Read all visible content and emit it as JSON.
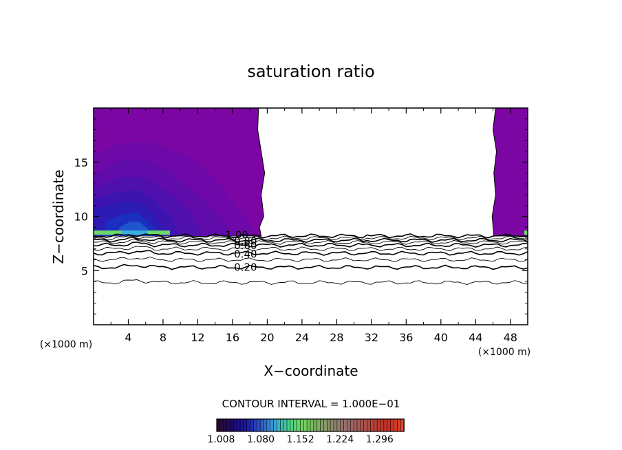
{
  "chart_data": {
    "type": "heatmap",
    "title": "saturation ratio",
    "xlabel": "X−coordinate",
    "ylabel": "Z−coordinate",
    "x_unit": "(×1000 m)",
    "z_unit": "(×1000 m)",
    "xlim": [
      0,
      50
    ],
    "ylim": [
      0,
      20
    ],
    "x_ticks": [
      4,
      8,
      12,
      16,
      20,
      24,
      28,
      32,
      36,
      40,
      44,
      48
    ],
    "y_ticks": [
      5,
      10,
      15
    ],
    "contour_interval_text": "CONTOUR INTERVAL = 1.000E−01",
    "contour_levels": [
      0.1,
      0.2,
      0.3,
      0.4,
      0.5,
      0.6,
      0.7,
      0.8,
      0.9,
      1.0
    ],
    "contour_labels": [
      {
        "text": "0.20",
        "x": 17.5,
        "y": 5.3
      },
      {
        "text": "0.40",
        "x": 17.5,
        "y": 6.5
      },
      {
        "text": "0.60",
        "x": 17.5,
        "y": 7.3
      },
      {
        "text": "0.80",
        "x": 17.5,
        "y": 7.7
      },
      {
        "text": "1.00",
        "x": 16.5,
        "y": 8.3
      }
    ],
    "supersaturated_regions": [
      {
        "x_range": [
          0,
          19
        ],
        "z_range": [
          8.1,
          20
        ]
      },
      {
        "x_range": [
          46,
          50
        ],
        "z_range": [
          8.1,
          20
        ]
      }
    ],
    "colorbar": {
      "min": 1.0,
      "max": 1.34,
      "ticks": [
        "1.008",
        "1.080",
        "1.152",
        "1.224",
        "1.296"
      ],
      "colors": [
        "#2b0a33",
        "#1f0a6e",
        "#1a1aa8",
        "#2f59c9",
        "#3aa7d8",
        "#48d28a",
        "#73d65a",
        "#7cae61",
        "#8d8a6b",
        "#9b6f6f",
        "#a85a58",
        "#b84336",
        "#c92f22",
        "#e0462e"
      ]
    }
  }
}
